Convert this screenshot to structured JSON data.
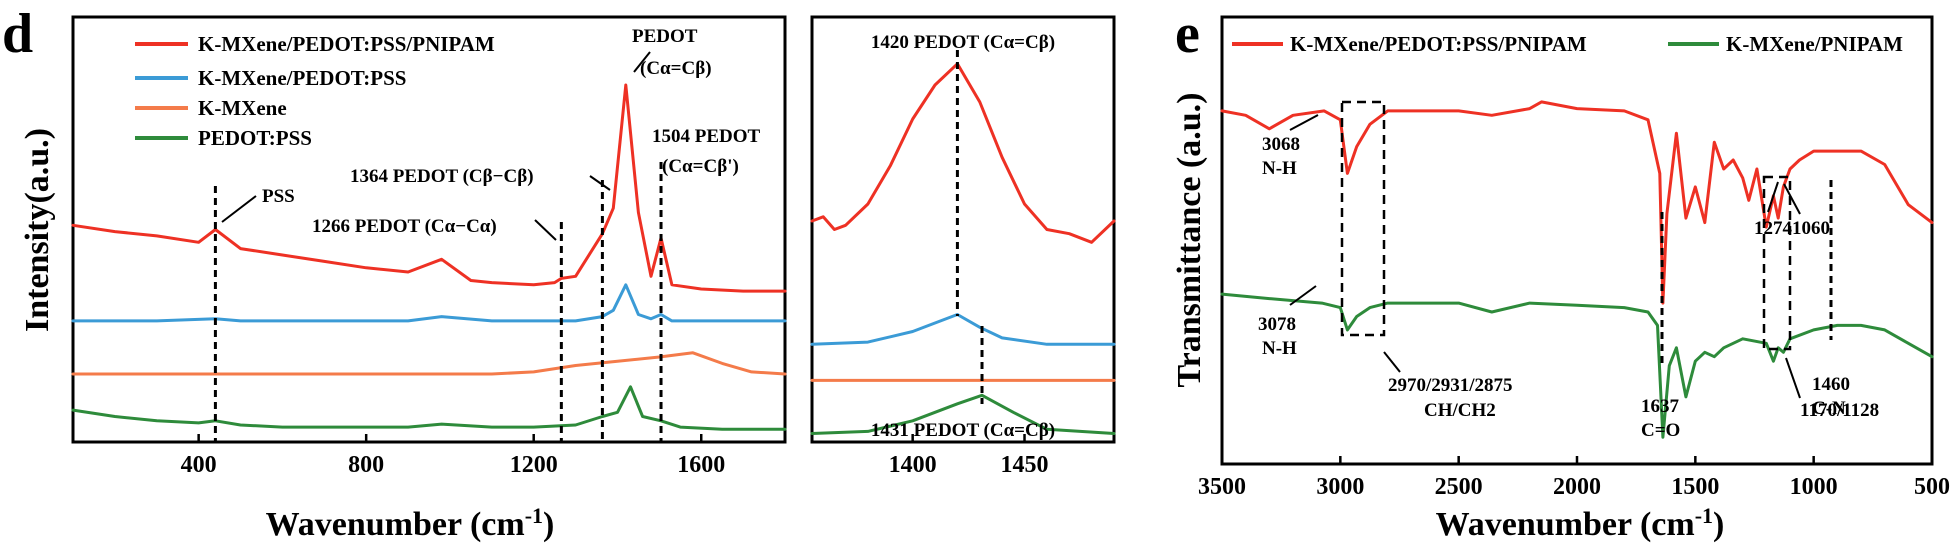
{
  "colors": {
    "red": "#ee3124",
    "blue": "#3b9bd6",
    "orange": "#f47b4a",
    "green": "#2e8b3b"
  },
  "panel_d": {
    "letter": "d"
  },
  "panel_e": {
    "letter": "e"
  },
  "chart_data": [
    {
      "type": "line",
      "panel": "d",
      "xlabel": "Wavenumber (cm-1)",
      "ylabel": "Intensity(a.u.)",
      "xlim": [
        100,
        1800
      ],
      "ylim": [
        0,
        10
      ],
      "xticks": [
        400,
        800,
        1200,
        1600
      ],
      "grid": false,
      "legend": {
        "placement": "top-left",
        "entries": [
          "K-MXene/PEDOT:PSS/PNIPAM",
          "K-MXene/PEDOT:PSS",
          "K-MXene",
          "PEDOT:PSS"
        ]
      },
      "series": [
        {
          "name": "K-MXene/PEDOT:PSS/PNIPAM",
          "color": "red",
          "x": [
            100,
            200,
            300,
            400,
            440,
            500,
            600,
            700,
            800,
            900,
            980,
            1050,
            1100,
            1200,
            1250,
            1266,
            1300,
            1364,
            1390,
            1420,
            1450,
            1480,
            1504,
            1530,
            1600,
            1700,
            1800
          ],
          "y": [
            5.1,
            4.95,
            4.85,
            4.7,
            5.0,
            4.55,
            4.4,
            4.25,
            4.1,
            4.0,
            4.3,
            3.8,
            3.75,
            3.7,
            3.75,
            3.85,
            3.9,
            4.9,
            5.5,
            8.4,
            5.4,
            3.9,
            4.8,
            3.7,
            3.6,
            3.55,
            3.55
          ]
        },
        {
          "name": "K-MXene/PEDOT:PSS",
          "color": "blue",
          "x": [
            100,
            300,
            440,
            500,
            700,
            900,
            980,
            1100,
            1300,
            1364,
            1390,
            1420,
            1450,
            1480,
            1504,
            1530,
            1600,
            1800
          ],
          "y": [
            2.85,
            2.85,
            2.9,
            2.85,
            2.85,
            2.85,
            2.95,
            2.85,
            2.85,
            2.95,
            3.1,
            3.7,
            3.0,
            2.9,
            3.0,
            2.85,
            2.85,
            2.85
          ]
        },
        {
          "name": "K-MXene",
          "color": "orange",
          "x": [
            100,
            300,
            500,
            700,
            900,
            1100,
            1200,
            1300,
            1400,
            1500,
            1580,
            1650,
            1720,
            1800
          ],
          "y": [
            1.6,
            1.6,
            1.6,
            1.6,
            1.6,
            1.6,
            1.65,
            1.8,
            1.9,
            2.0,
            2.1,
            1.85,
            1.65,
            1.6
          ]
        },
        {
          "name": "PEDOT:PSS",
          "color": "green",
          "x": [
            100,
            200,
            300,
            400,
            440,
            500,
            600,
            700,
            800,
            900,
            980,
            1100,
            1200,
            1300,
            1364,
            1400,
            1431,
            1460,
            1504,
            1550,
            1650,
            1800
          ],
          "y": [
            0.75,
            0.6,
            0.5,
            0.45,
            0.5,
            0.4,
            0.35,
            0.35,
            0.35,
            0.35,
            0.42,
            0.35,
            0.35,
            0.4,
            0.6,
            0.7,
            1.3,
            0.6,
            0.5,
            0.35,
            0.3,
            0.3
          ]
        }
      ],
      "annotations": {
        "pss": "PSS",
        "pedot": "PEDOT",
        "pedot_sub": "(Cα=Cβ)",
        "a1504": "1504 PEDOT",
        "a1504_sub": "(Cα=Cβ')",
        "a1364": "1364 PEDOT (Cβ−Cβ)",
        "a1266": "1266 PEDOT (Cα−Cα)"
      },
      "guides": [
        440,
        1266,
        1364,
        1504
      ]
    },
    {
      "type": "line",
      "panel": "d-inset",
      "xlim": [
        1355,
        1490
      ],
      "ylim": [
        0,
        10
      ],
      "xticks": [
        1400,
        1450
      ],
      "grid": false,
      "series": [
        {
          "name": "K-MXene/PEDOT:PSS/PNIPAM",
          "color": "red",
          "x": [
            1355,
            1360,
            1365,
            1370,
            1380,
            1390,
            1400,
            1410,
            1420,
            1430,
            1440,
            1450,
            1460,
            1470,
            1480,
            1490
          ],
          "y": [
            5.2,
            5.3,
            5.0,
            5.1,
            5.6,
            6.5,
            7.6,
            8.4,
            8.9,
            8.0,
            6.7,
            5.6,
            5.0,
            4.9,
            4.7,
            5.2
          ]
        },
        {
          "name": "K-MXene/PEDOT:PSS",
          "color": "blue",
          "x": [
            1355,
            1380,
            1400,
            1410,
            1420,
            1430,
            1440,
            1460,
            1490
          ],
          "y": [
            2.3,
            2.35,
            2.6,
            2.8,
            3.0,
            2.7,
            2.45,
            2.3,
            2.3
          ]
        },
        {
          "name": "K-MXene",
          "color": "orange",
          "x": [
            1355,
            1420,
            1490
          ],
          "y": [
            1.45,
            1.45,
            1.45
          ]
        },
        {
          "name": "PEDOT:PSS",
          "color": "green",
          "x": [
            1355,
            1380,
            1400,
            1420,
            1431,
            1445,
            1460,
            1490
          ],
          "y": [
            0.2,
            0.25,
            0.5,
            0.9,
            1.1,
            0.7,
            0.3,
            0.2
          ]
        }
      ],
      "annotations": {
        "top": "1420 PEDOT (Cα=Cβ)",
        "bottom": "1431 PEDOT (Cα=Cβ)"
      },
      "guides": [
        1420,
        1431
      ]
    },
    {
      "type": "line",
      "panel": "e",
      "xlabel": "Wavenumber (cm-1)",
      "ylabel": "Transmittance (a.u.)",
      "xlim": [
        3500,
        500
      ],
      "ylim": [
        0,
        10
      ],
      "xticks": [
        3500,
        3000,
        2500,
        2000,
        1500,
        1000,
        500
      ],
      "grid": false,
      "legend": {
        "placement": "top",
        "entries": [
          "K-MXene/PEDOT:PSS/PNIPAM",
          "K-MXene/PNIPAM"
        ]
      },
      "series": [
        {
          "name": "K-MXene/PEDOT:PSS/PNIPAM",
          "color": "red",
          "x": [
            3500,
            3400,
            3300,
            3200,
            3068,
            3000,
            2970,
            2931,
            2875,
            2800,
            2500,
            2360,
            2200,
            2150,
            2000,
            1800,
            1700,
            1650,
            1637,
            1620,
            1580,
            1540,
            1500,
            1460,
            1420,
            1380,
            1340,
            1300,
            1274,
            1240,
            1200,
            1170,
            1150,
            1128,
            1100,
            1060,
            1000,
            900,
            800,
            700,
            600,
            500
          ],
          "y": [
            7.9,
            7.8,
            7.5,
            7.8,
            7.9,
            7.7,
            6.5,
            7.1,
            7.6,
            7.9,
            7.9,
            7.8,
            7.95,
            8.1,
            7.95,
            7.9,
            7.7,
            6.5,
            3.6,
            5.6,
            7.4,
            5.5,
            6.2,
            5.4,
            7.2,
            6.6,
            6.8,
            6.4,
            5.9,
            6.6,
            5.3,
            6.0,
            5.5,
            6.2,
            6.6,
            6.8,
            7.0,
            7.0,
            7.0,
            6.7,
            5.8,
            5.4
          ]
        },
        {
          "name": "K-MXene/PNIPAM",
          "color": "green",
          "x": [
            3500,
            3300,
            3078,
            3000,
            2970,
            2931,
            2875,
            2800,
            2500,
            2360,
            2200,
            2000,
            1800,
            1700,
            1660,
            1637,
            1610,
            1580,
            1540,
            1500,
            1460,
            1420,
            1380,
            1300,
            1200,
            1170,
            1150,
            1128,
            1100,
            1000,
            900,
            800,
            700,
            600,
            500
          ],
          "y": [
            3.8,
            3.7,
            3.6,
            3.5,
            3.0,
            3.3,
            3.5,
            3.6,
            3.6,
            3.4,
            3.6,
            3.55,
            3.5,
            3.4,
            3.1,
            0.6,
            2.2,
            2.6,
            1.5,
            2.3,
            2.5,
            2.4,
            2.6,
            2.8,
            2.7,
            2.3,
            2.6,
            2.5,
            2.8,
            3.0,
            3.1,
            3.1,
            3.0,
            2.7,
            2.4
          ]
        }
      ],
      "annotations": {
        "a3068": "3068",
        "nh1": "N-H",
        "a3078": "3078",
        "nh2": "N-H",
        "a2970": "2970/2931/2875",
        "ch": "CH/CH2",
        "a1637": "1637",
        "co": "C=O",
        "a1460": "1460",
        "cn": "C-N",
        "a1274": "1274",
        "a1060": "1060",
        "a1170": "1170/1128"
      }
    }
  ]
}
